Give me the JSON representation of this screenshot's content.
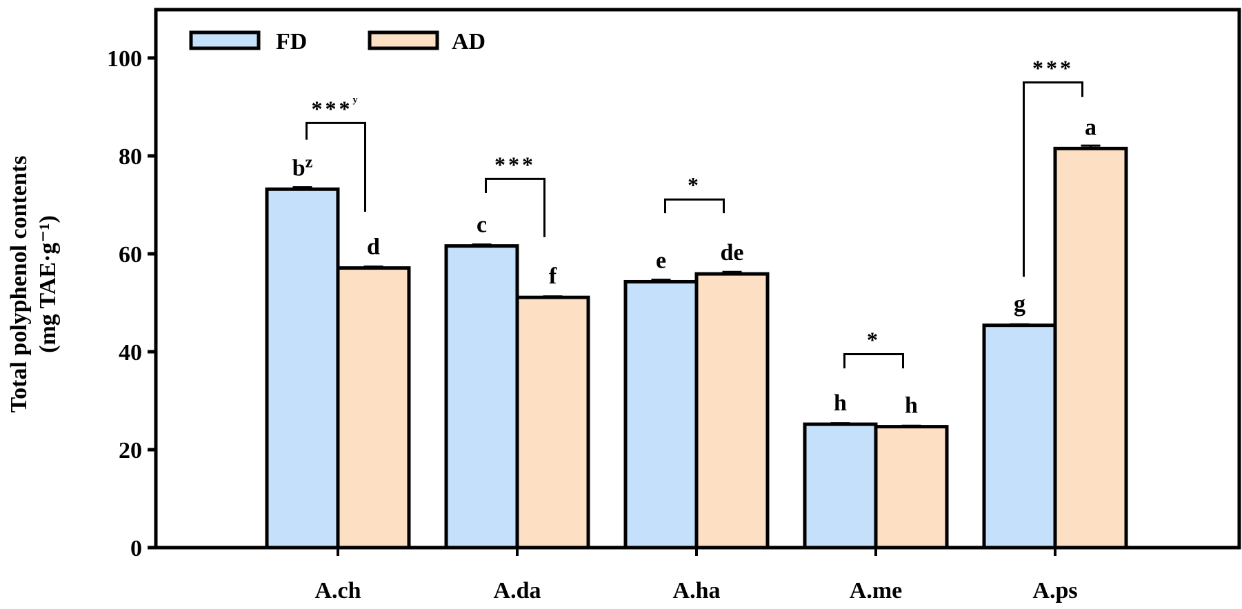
{
  "chart_data": {
    "type": "bar",
    "title": "",
    "xlabel": "",
    "ylabel_line1": "Total polyphenol contents",
    "ylabel_line2": "(mg TAE·g⁻¹)",
    "ylim": [
      0,
      100
    ],
    "yticks": [
      0,
      20,
      40,
      60,
      80,
      100
    ],
    "categories": [
      "A.ch",
      "A.da",
      "A.ha",
      "A.me",
      "A.ps"
    ],
    "legend_position": "top-left",
    "series": [
      {
        "name": "FD",
        "color": "#c4e0fb",
        "values": [
          73.2,
          61.6,
          54.3,
          25.2,
          45.4
        ],
        "errors": [
          0.4,
          0.3,
          0.4,
          0.2,
          0.2
        ],
        "letters": [
          "b",
          "c",
          "e",
          "h",
          "g"
        ],
        "letter_sup": [
          "z",
          "",
          "",
          "",
          ""
        ]
      },
      {
        "name": "AD",
        "color": "#fde0c4",
        "values": [
          57.1,
          51.1,
          55.9,
          24.7,
          81.5
        ],
        "errors": [
          0.3,
          0.2,
          0.4,
          0.2,
          0.6
        ],
        "letters": [
          "d",
          "f",
          "de",
          "h",
          "a"
        ],
        "letter_sup": [
          "",
          "",
          "",
          "",
          ""
        ]
      }
    ],
    "significance": [
      {
        "label": "***",
        "sup": "y",
        "top": 86.7,
        "left_end": 83.3,
        "right_end": 68.6
      },
      {
        "label": "***",
        "sup": "",
        "top": 75.3,
        "left_end": 72.4,
        "right_end": 63.4
      },
      {
        "label": "*",
        "sup": "",
        "top": 71.1,
        "left_end": 68.3,
        "right_end": 68.3
      },
      {
        "label": "*",
        "sup": "",
        "top": 39.5,
        "left_end": 36.6,
        "right_end": 36.6
      },
      {
        "label": "***",
        "sup": "",
        "top": 95.0,
        "left_end": 55.3,
        "right_end": 92.0
      }
    ]
  }
}
